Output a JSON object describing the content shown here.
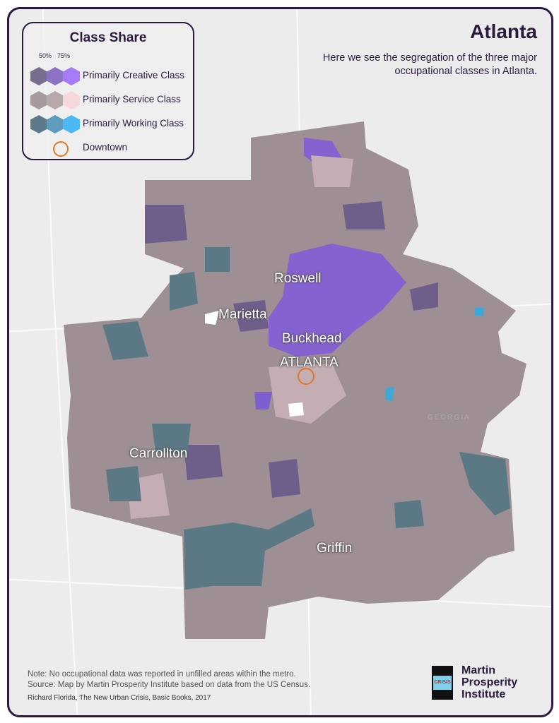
{
  "title": "Atlanta",
  "subtitle": "Here we see the segregation of the three major occupational classes in Atlanta.",
  "legend": {
    "title": "Class Share",
    "thresholds": [
      "50%",
      "75%"
    ],
    "items": [
      {
        "label": "Primarily Creative Class",
        "colors": [
          "#7a6e8e",
          "#8c72c2",
          "#a57cf5"
        ]
      },
      {
        "label": "Primarily Service Class",
        "colors": [
          "#a89a9c",
          "#b7a8aa",
          "#f5d8dc"
        ]
      },
      {
        "label": "Primarily Working Class",
        "colors": [
          "#5c7a8a",
          "#5f9bbd",
          "#4ab8f2"
        ]
      },
      {
        "label": "Downtown",
        "color": "#e07a20"
      }
    ]
  },
  "cities": [
    "Roswell",
    "Marietta",
    "Buckhead",
    "ATLANTA",
    "Carrollton",
    "Griffin"
  ],
  "state_label": "GEORGIA",
  "notes": {
    "note": "Note: No occupational data was reported in unfilled areas within the metro.",
    "source": "Source: Map by Martin Prosperity Institute based on data from the US Census.",
    "citation": "Richard Florida, The New Urban Crisis, Basic Books, 2017"
  },
  "logo": {
    "book_text": "CRISIS",
    "org_line1": "Martin",
    "org_line2": "Prosperity",
    "org_line3": "Institute"
  }
}
